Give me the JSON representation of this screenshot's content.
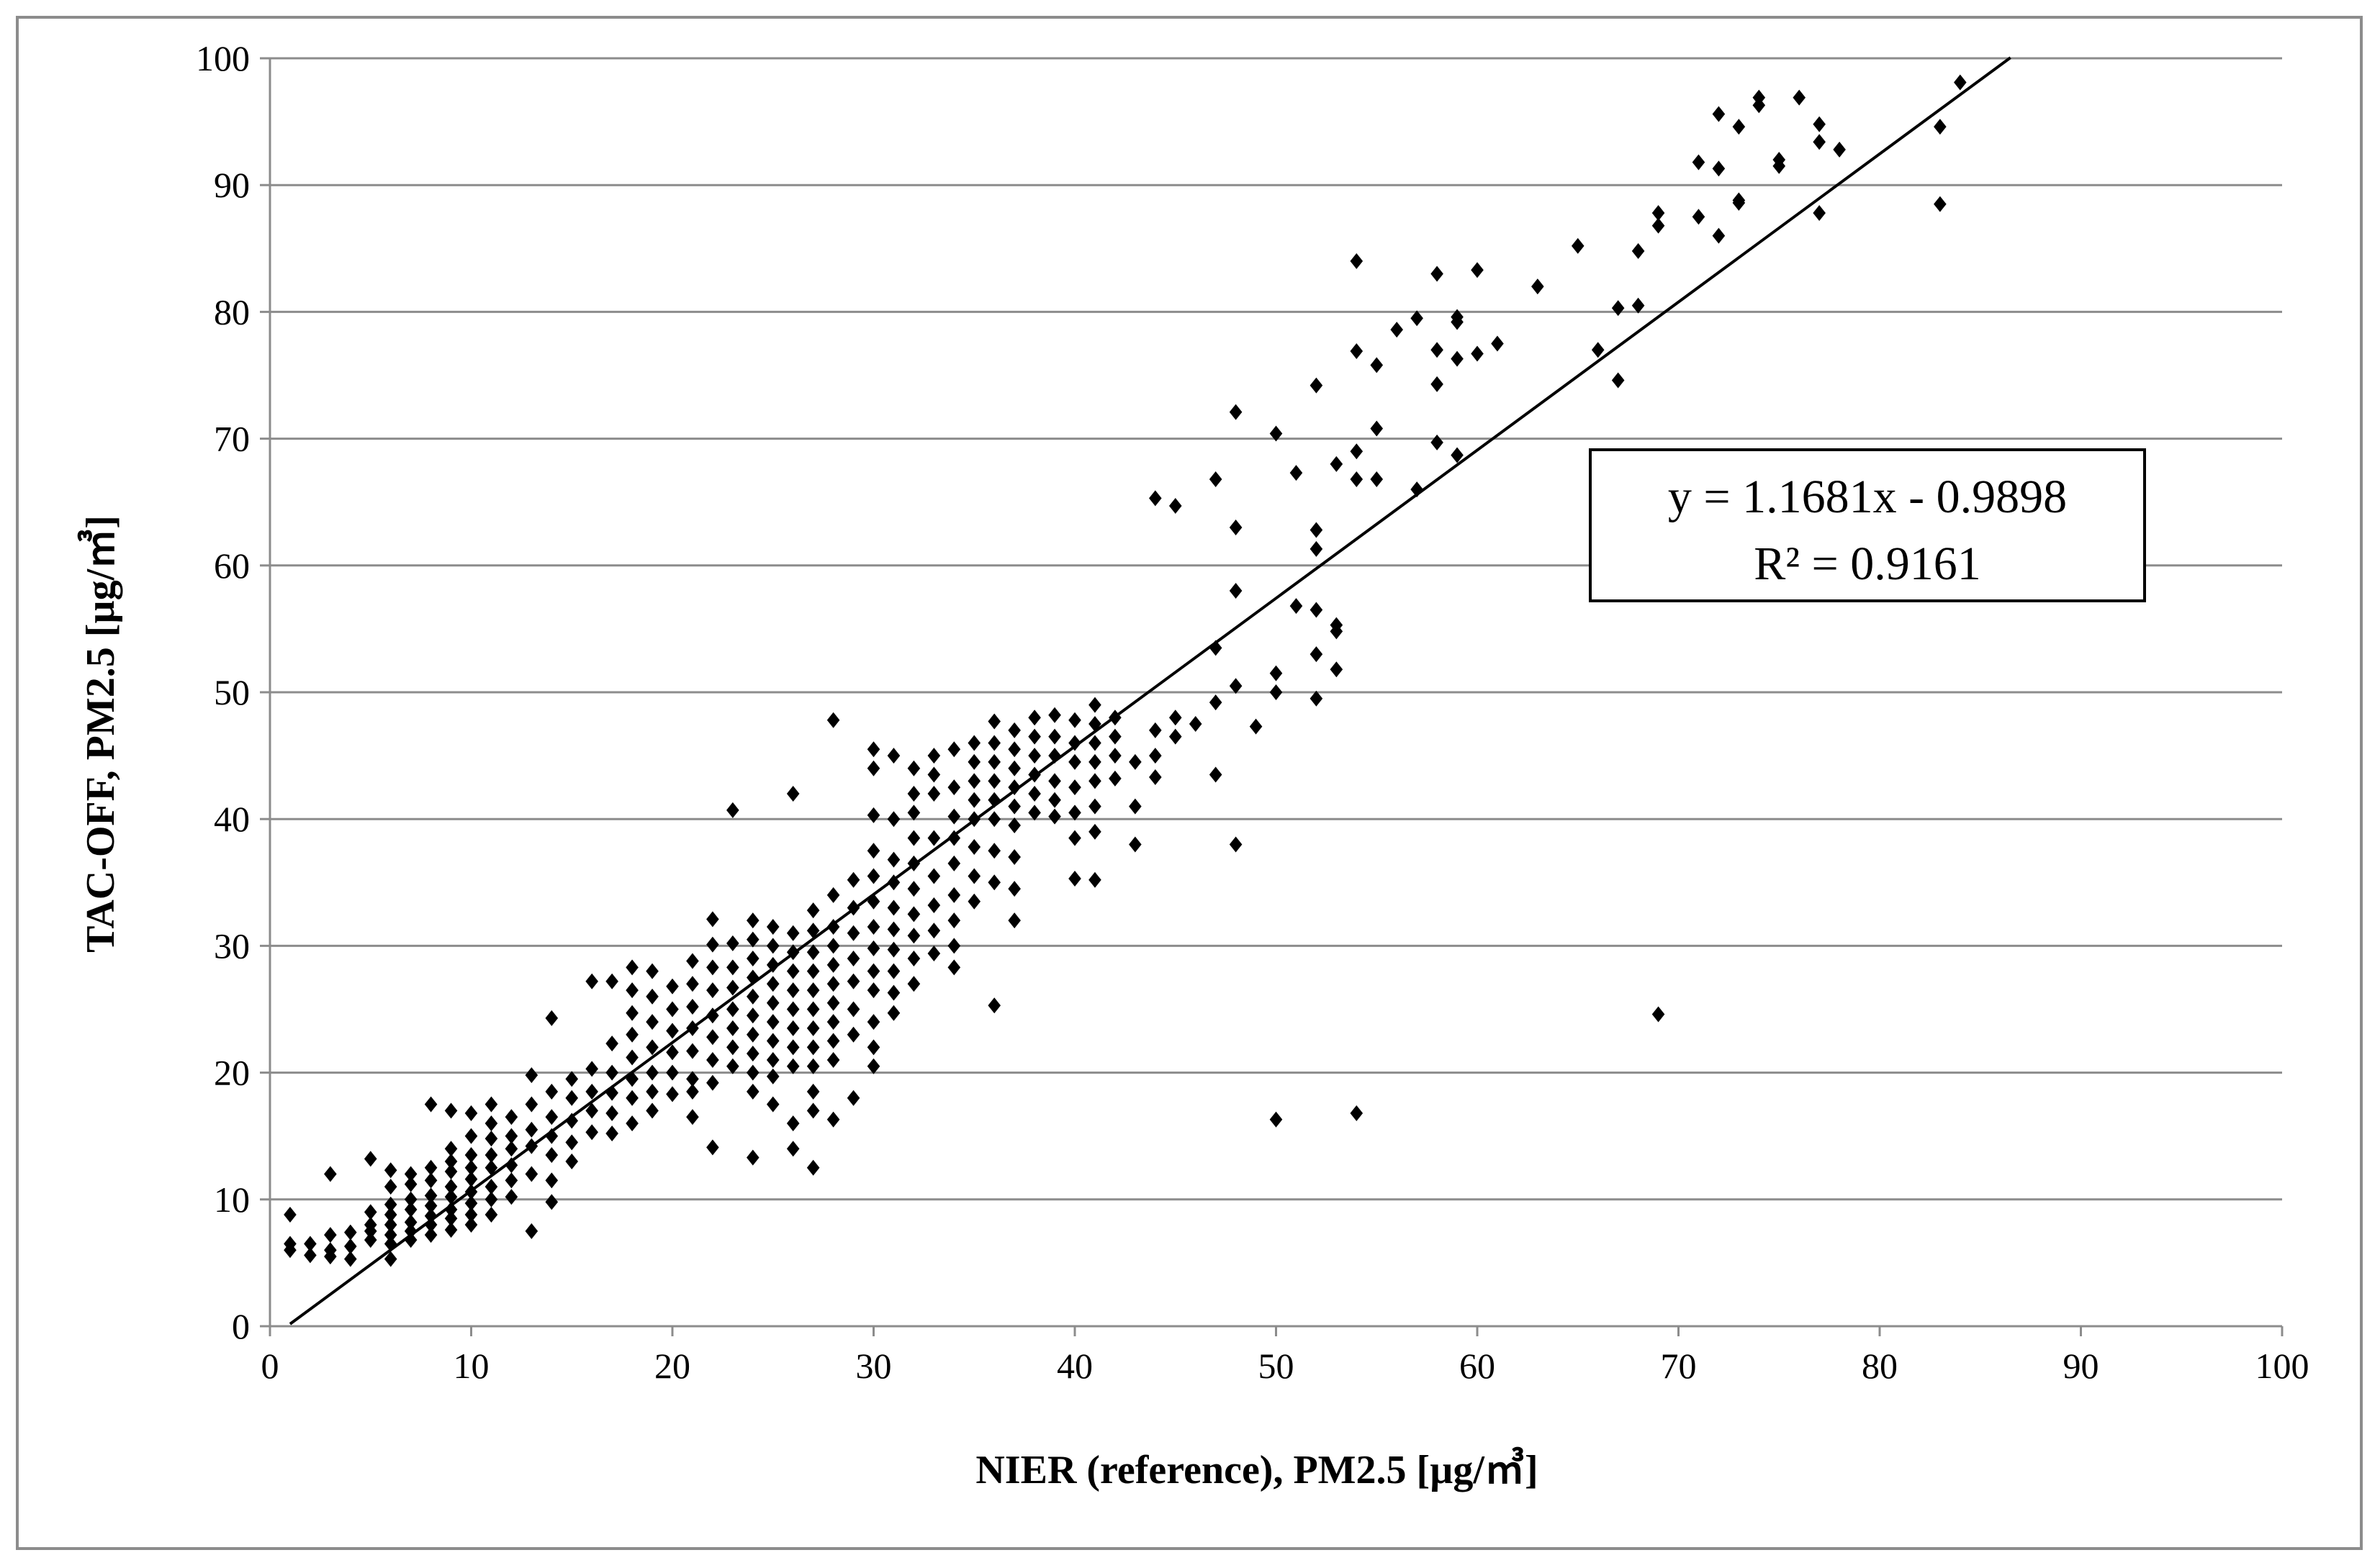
{
  "chart_data": {
    "type": "scatter",
    "xlabel": "NIER (reference), PM2.5  [µg/㎥]",
    "ylabel": "TAC-OFF, PM2.5  [µg/㎥]",
    "xlim": [
      0,
      100
    ],
    "ylim": [
      0,
      100
    ],
    "x_ticks": [
      "0",
      "10",
      "20",
      "30",
      "40",
      "50",
      "60",
      "70",
      "80",
      "90",
      "100"
    ],
    "y_ticks": [
      "0",
      "10",
      "20",
      "30",
      "40",
      "50",
      "60",
      "70",
      "80",
      "90",
      "100"
    ],
    "grid": "horizontal",
    "marker": "diamond",
    "marker_color": "#000000",
    "trendline": {
      "slope": 1.1681,
      "intercept": -0.9898,
      "x_range": [
        1,
        86.5
      ]
    },
    "annotation": {
      "equation": "y = 1.1681x - 0.9898",
      "r_squared": "R² = 0.9161"
    },
    "points": [
      [
        1,
        8.8
      ],
      [
        1,
        6.5
      ],
      [
        1,
        6.0
      ],
      [
        2,
        6.5
      ],
      [
        2,
        5.6
      ],
      [
        3,
        12.0
      ],
      [
        3,
        7.2
      ],
      [
        3,
        6.0
      ],
      [
        3,
        5.5
      ],
      [
        4,
        7.4
      ],
      [
        4,
        6.3
      ],
      [
        4,
        5.3
      ],
      [
        5,
        13.2
      ],
      [
        5,
        9.0
      ],
      [
        5,
        8.0
      ],
      [
        5,
        7.5
      ],
      [
        5,
        6.8
      ],
      [
        6,
        12.3
      ],
      [
        6,
        11.0
      ],
      [
        6,
        9.6
      ],
      [
        6,
        8.8
      ],
      [
        6,
        8.0
      ],
      [
        6,
        7.2
      ],
      [
        6,
        6.5
      ],
      [
        6,
        5.3
      ],
      [
        7,
        12.0
      ],
      [
        7,
        11.2
      ],
      [
        7,
        10.0
      ],
      [
        7,
        9.2
      ],
      [
        7,
        8.2
      ],
      [
        7,
        7.5
      ],
      [
        7,
        6.8
      ],
      [
        8,
        17.5
      ],
      [
        8,
        12.5
      ],
      [
        8,
        11.5
      ],
      [
        8,
        10.3
      ],
      [
        8,
        9.5
      ],
      [
        8,
        8.7
      ],
      [
        8,
        8.0
      ],
      [
        8,
        7.2
      ],
      [
        9,
        17.0
      ],
      [
        9,
        14.0
      ],
      [
        9,
        13.0
      ],
      [
        9,
        12.2
      ],
      [
        9,
        11.0
      ],
      [
        9,
        10.2
      ],
      [
        9,
        9.2
      ],
      [
        9,
        8.5
      ],
      [
        9,
        7.6
      ],
      [
        10,
        16.8
      ],
      [
        10,
        15.0
      ],
      [
        10,
        13.5
      ],
      [
        10,
        12.5
      ],
      [
        10,
        11.6
      ],
      [
        10,
        10.6
      ],
      [
        10,
        9.7
      ],
      [
        10,
        8.8
      ],
      [
        10,
        8.0
      ],
      [
        11,
        17.5
      ],
      [
        11,
        16.0
      ],
      [
        11,
        14.8
      ],
      [
        11,
        13.5
      ],
      [
        11,
        12.5
      ],
      [
        11,
        11.0
      ],
      [
        11,
        10.0
      ],
      [
        11,
        8.8
      ],
      [
        12,
        16.5
      ],
      [
        12,
        15.0
      ],
      [
        12,
        14.0
      ],
      [
        12,
        12.7
      ],
      [
        12,
        11.5
      ],
      [
        12,
        10.2
      ],
      [
        13,
        19.8
      ],
      [
        13,
        17.5
      ],
      [
        13,
        15.5
      ],
      [
        13,
        14.2
      ],
      [
        13,
        12.0
      ],
      [
        13,
        7.5
      ],
      [
        14,
        24.3
      ],
      [
        14,
        18.5
      ],
      [
        14,
        16.5
      ],
      [
        14,
        15.0
      ],
      [
        14,
        13.5
      ],
      [
        14,
        11.5
      ],
      [
        14,
        9.8
      ],
      [
        15,
        19.5
      ],
      [
        15,
        18.0
      ],
      [
        15,
        16.2
      ],
      [
        15,
        14.5
      ],
      [
        15,
        13.0
      ],
      [
        16,
        27.2
      ],
      [
        16,
        20.3
      ],
      [
        16,
        18.5
      ],
      [
        16,
        17.0
      ],
      [
        16,
        15.3
      ],
      [
        17,
        27.2
      ],
      [
        17,
        22.3
      ],
      [
        17,
        20.0
      ],
      [
        17,
        18.4
      ],
      [
        17,
        16.8
      ],
      [
        17,
        15.2
      ],
      [
        18,
        28.3
      ],
      [
        18,
        26.5
      ],
      [
        18,
        24.7
      ],
      [
        18,
        23.0
      ],
      [
        18,
        21.2
      ],
      [
        18,
        19.5
      ],
      [
        18,
        18.0
      ],
      [
        18,
        16.0
      ],
      [
        19,
        28.0
      ],
      [
        19,
        26.0
      ],
      [
        19,
        24.0
      ],
      [
        19,
        22.0
      ],
      [
        19,
        20.0
      ],
      [
        19,
        18.5
      ],
      [
        19,
        17.0
      ],
      [
        20,
        26.8
      ],
      [
        20,
        25.0
      ],
      [
        20,
        23.3
      ],
      [
        20,
        21.6
      ],
      [
        20,
        20.0
      ],
      [
        20,
        18.3
      ],
      [
        21,
        28.8
      ],
      [
        21,
        27.0
      ],
      [
        21,
        25.2
      ],
      [
        21,
        23.5
      ],
      [
        21,
        21.7
      ],
      [
        21,
        19.5
      ],
      [
        21,
        18.5
      ],
      [
        21,
        16.5
      ],
      [
        22,
        32.1
      ],
      [
        22,
        30.1
      ],
      [
        22,
        28.3
      ],
      [
        22,
        26.5
      ],
      [
        22,
        24.5
      ],
      [
        22,
        22.8
      ],
      [
        22,
        21.0
      ],
      [
        22,
        19.2
      ],
      [
        22,
        14.1
      ],
      [
        23,
        40.7
      ],
      [
        23,
        30.2
      ],
      [
        23,
        28.3
      ],
      [
        23,
        26.7
      ],
      [
        23,
        25.0
      ],
      [
        23,
        23.5
      ],
      [
        23,
        22.0
      ],
      [
        23,
        20.5
      ],
      [
        24,
        32.0
      ],
      [
        24,
        30.5
      ],
      [
        24,
        29.0
      ],
      [
        24,
        27.5
      ],
      [
        24,
        26.0
      ],
      [
        24,
        24.5
      ],
      [
        24,
        23.0
      ],
      [
        24,
        21.5
      ],
      [
        24,
        20.0
      ],
      [
        24,
        18.5
      ],
      [
        24,
        13.3
      ],
      [
        25,
        31.5
      ],
      [
        25,
        30.0
      ],
      [
        25,
        28.5
      ],
      [
        25,
        27.0
      ],
      [
        25,
        25.5
      ],
      [
        25,
        24.0
      ],
      [
        25,
        22.5
      ],
      [
        25,
        21.0
      ],
      [
        25,
        19.7
      ],
      [
        25,
        17.5
      ],
      [
        26,
        42.0
      ],
      [
        26,
        31.0
      ],
      [
        26,
        29.5
      ],
      [
        26,
        28.0
      ],
      [
        26,
        26.5
      ],
      [
        26,
        25.0
      ],
      [
        26,
        23.5
      ],
      [
        26,
        22.0
      ],
      [
        26,
        20.5
      ],
      [
        26,
        16.0
      ],
      [
        26,
        14.0
      ],
      [
        27,
        32.8
      ],
      [
        27,
        31.2
      ],
      [
        27,
        29.5
      ],
      [
        27,
        28.0
      ],
      [
        27,
        26.5
      ],
      [
        27,
        25.0
      ],
      [
        27,
        23.5
      ],
      [
        27,
        22.0
      ],
      [
        27,
        20.5
      ],
      [
        27,
        18.5
      ],
      [
        27,
        17.0
      ],
      [
        27,
        12.5
      ],
      [
        28,
        47.8
      ],
      [
        28,
        34.0
      ],
      [
        28,
        31.5
      ],
      [
        28,
        30.0
      ],
      [
        28,
        28.5
      ],
      [
        28,
        27.0
      ],
      [
        28,
        25.5
      ],
      [
        28,
        24.0
      ],
      [
        28,
        22.5
      ],
      [
        28,
        21.0
      ],
      [
        28,
        16.3
      ],
      [
        29,
        35.2
      ],
      [
        29,
        33.0
      ],
      [
        29,
        31.0
      ],
      [
        29,
        29.0
      ],
      [
        29,
        27.2
      ],
      [
        29,
        25.0
      ],
      [
        29,
        23.0
      ],
      [
        29,
        18.0
      ],
      [
        30,
        45.5
      ],
      [
        30,
        44.0
      ],
      [
        30,
        40.3
      ],
      [
        30,
        37.5
      ],
      [
        30,
        35.5
      ],
      [
        30,
        33.5
      ],
      [
        30,
        31.5
      ],
      [
        30,
        29.8
      ],
      [
        30,
        28.0
      ],
      [
        30,
        26.5
      ],
      [
        30,
        24.0
      ],
      [
        30,
        22.0
      ],
      [
        30,
        20.5
      ],
      [
        31,
        45.0
      ],
      [
        31,
        40.0
      ],
      [
        31,
        36.8
      ],
      [
        31,
        35.0
      ],
      [
        31,
        33.0
      ],
      [
        31,
        31.3
      ],
      [
        31,
        29.7
      ],
      [
        31,
        28.0
      ],
      [
        31,
        26.3
      ],
      [
        31,
        24.7
      ],
      [
        32,
        44.0
      ],
      [
        32,
        42.0
      ],
      [
        32,
        40.5
      ],
      [
        32,
        38.5
      ],
      [
        32,
        36.5
      ],
      [
        32,
        34.5
      ],
      [
        32,
        32.5
      ],
      [
        32,
        30.8
      ],
      [
        32,
        29.0
      ],
      [
        32,
        27.0
      ],
      [
        33,
        45.0
      ],
      [
        33,
        43.5
      ],
      [
        33,
        42.0
      ],
      [
        33,
        38.5
      ],
      [
        33,
        35.5
      ],
      [
        33,
        33.2
      ],
      [
        33,
        31.2
      ],
      [
        33,
        29.4
      ],
      [
        34,
        45.5
      ],
      [
        34,
        42.5
      ],
      [
        34,
        40.2
      ],
      [
        34,
        38.5
      ],
      [
        34,
        36.5
      ],
      [
        34,
        34.0
      ],
      [
        34,
        32.0
      ],
      [
        34,
        30.0
      ],
      [
        34,
        28.3
      ],
      [
        35,
        46.0
      ],
      [
        35,
        44.5
      ],
      [
        35,
        43.0
      ],
      [
        35,
        41.5
      ],
      [
        35,
        40.0
      ],
      [
        35,
        37.8
      ],
      [
        35,
        35.5
      ],
      [
        35,
        33.5
      ],
      [
        36,
        47.7
      ],
      [
        36,
        46.0
      ],
      [
        36,
        44.5
      ],
      [
        36,
        43.0
      ],
      [
        36,
        41.5
      ],
      [
        36,
        40.0
      ],
      [
        36,
        37.5
      ],
      [
        36,
        35.0
      ],
      [
        36,
        25.3
      ],
      [
        37,
        47.0
      ],
      [
        37,
        45.5
      ],
      [
        37,
        44.0
      ],
      [
        37,
        42.5
      ],
      [
        37,
        41.0
      ],
      [
        37,
        39.5
      ],
      [
        37,
        37.0
      ],
      [
        37,
        34.5
      ],
      [
        37,
        32.0
      ],
      [
        38,
        48.0
      ],
      [
        38,
        46.5
      ],
      [
        38,
        45.0
      ],
      [
        38,
        43.5
      ],
      [
        38,
        42.0
      ],
      [
        38,
        40.5
      ],
      [
        39,
        48.2
      ],
      [
        39,
        46.5
      ],
      [
        39,
        45.0
      ],
      [
        39,
        43.0
      ],
      [
        39,
        41.5
      ],
      [
        39,
        40.2
      ],
      [
        40,
        47.8
      ],
      [
        40,
        46.0
      ],
      [
        40,
        44.5
      ],
      [
        40,
        42.5
      ],
      [
        40,
        40.5
      ],
      [
        40,
        38.5
      ],
      [
        40,
        35.3
      ],
      [
        41,
        49.0
      ],
      [
        41,
        47.5
      ],
      [
        41,
        46.0
      ],
      [
        41,
        44.5
      ],
      [
        41,
        43.0
      ],
      [
        41,
        41.0
      ],
      [
        41,
        39.0
      ],
      [
        41,
        35.2
      ],
      [
        42,
        48.0
      ],
      [
        42,
        46.5
      ],
      [
        42,
        45.0
      ],
      [
        42,
        43.2
      ],
      [
        43,
        44.5
      ],
      [
        43,
        41.0
      ],
      [
        43,
        38.0
      ],
      [
        44,
        65.3
      ],
      [
        44,
        47.0
      ],
      [
        44,
        45.0
      ],
      [
        44,
        43.3
      ],
      [
        45,
        64.7
      ],
      [
        45,
        48.0
      ],
      [
        45,
        46.5
      ],
      [
        46,
        47.5
      ],
      [
        47,
        66.8
      ],
      [
        47,
        53.5
      ],
      [
        47,
        49.2
      ],
      [
        47,
        43.5
      ],
      [
        48,
        72.1
      ],
      [
        48,
        63.0
      ],
      [
        48,
        58.0
      ],
      [
        48,
        50.5
      ],
      [
        48,
        38.0
      ],
      [
        49,
        47.3
      ],
      [
        50,
        70.4
      ],
      [
        50,
        51.5
      ],
      [
        50,
        50.0
      ],
      [
        50,
        16.3
      ],
      [
        51,
        67.3
      ],
      [
        51,
        56.8
      ],
      [
        52,
        74.2
      ],
      [
        52,
        62.8
      ],
      [
        52,
        61.3
      ],
      [
        52,
        56.5
      ],
      [
        52,
        53.0
      ],
      [
        52,
        49.5
      ],
      [
        53,
        68.0
      ],
      [
        53,
        55.3
      ],
      [
        53,
        54.8
      ],
      [
        53,
        51.8
      ],
      [
        54,
        84.0
      ],
      [
        54,
        76.9
      ],
      [
        54,
        69.0
      ],
      [
        54,
        66.8
      ],
      [
        54,
        16.8
      ],
      [
        55,
        75.8
      ],
      [
        55,
        70.8
      ],
      [
        55,
        66.8
      ],
      [
        56,
        78.6
      ],
      [
        57,
        79.5
      ],
      [
        57,
        66.0
      ],
      [
        58,
        83.0
      ],
      [
        58,
        77.0
      ],
      [
        58,
        74.3
      ],
      [
        58,
        69.7
      ],
      [
        59,
        79.6
      ],
      [
        59,
        79.2
      ],
      [
        59,
        76.3
      ],
      [
        59,
        68.7
      ],
      [
        60,
        83.3
      ],
      [
        60,
        76.7
      ],
      [
        61,
        77.5
      ],
      [
        63,
        82.0
      ],
      [
        65,
        85.2
      ],
      [
        66,
        77.0
      ],
      [
        67,
        80.3
      ],
      [
        67,
        74.6
      ],
      [
        68,
        84.8
      ],
      [
        68,
        80.5
      ],
      [
        69,
        87.8
      ],
      [
        69,
        86.8
      ],
      [
        69,
        24.6
      ],
      [
        71,
        91.8
      ],
      [
        71,
        87.5
      ],
      [
        72,
        95.6
      ],
      [
        72,
        91.3
      ],
      [
        72,
        86.0
      ],
      [
        73,
        94.6
      ],
      [
        73,
        88.8
      ],
      [
        73,
        88.6
      ],
      [
        74,
        96.9
      ],
      [
        74,
        96.3
      ],
      [
        75,
        92.0
      ],
      [
        75,
        91.5
      ],
      [
        76,
        96.9
      ],
      [
        77,
        94.8
      ],
      [
        77,
        93.4
      ],
      [
        77,
        87.8
      ],
      [
        78,
        92.8
      ],
      [
        83,
        94.6
      ],
      [
        83,
        88.5
      ],
      [
        84,
        98.1
      ]
    ]
  }
}
